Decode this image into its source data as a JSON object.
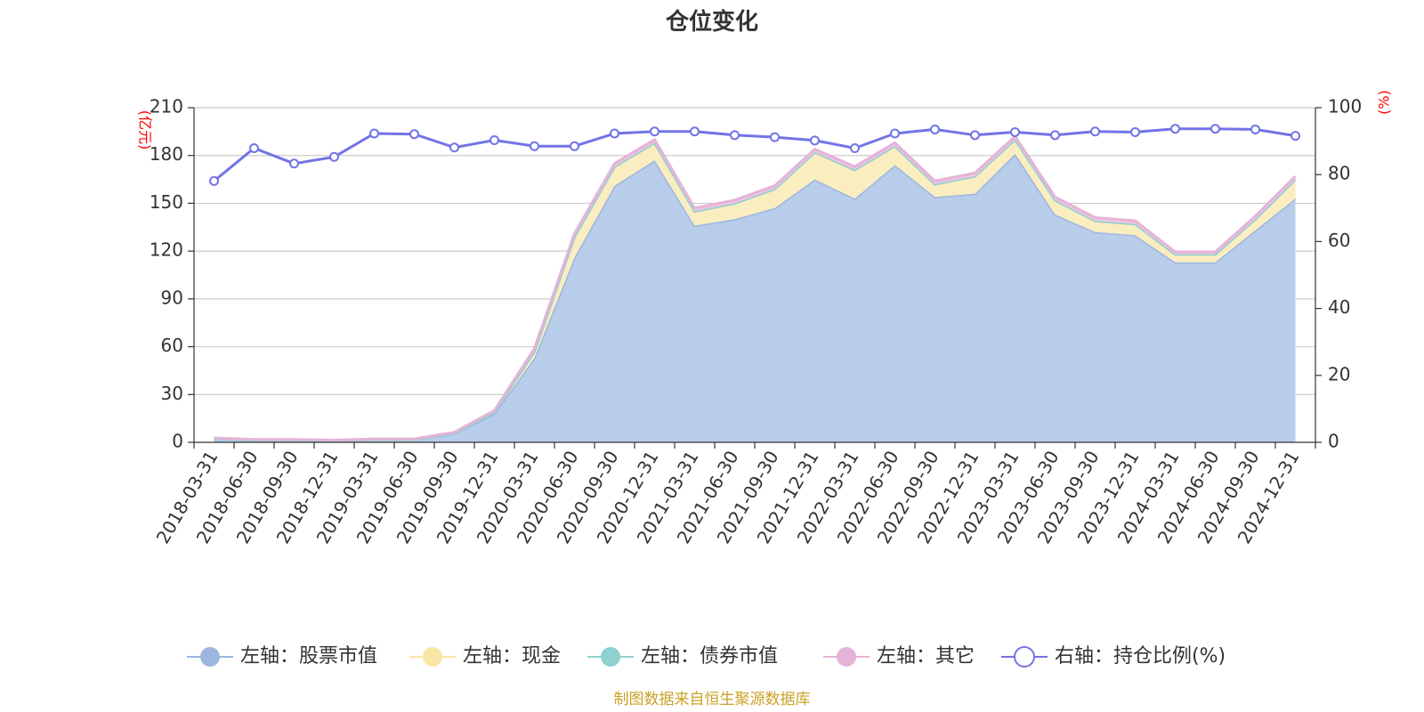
{
  "chart_data": {
    "type": "area",
    "title": "仓位变化",
    "source": "制图数据来自恒生聚源数据库",
    "left_axis": {
      "unit": "(亿元)",
      "ylim": [
        0,
        210
      ],
      "ticks": [
        0,
        30,
        60,
        90,
        120,
        150,
        180,
        210
      ]
    },
    "right_axis": {
      "unit": "(%)",
      "ylim": [
        0,
        100
      ],
      "ticks": [
        0,
        20,
        40,
        60,
        80,
        100
      ]
    },
    "categories": [
      "2018-03-31",
      "2018-06-30",
      "2018-09-30",
      "2018-12-31",
      "2019-03-31",
      "2019-06-30",
      "2019-09-30",
      "2019-12-31",
      "2020-03-31",
      "2020-06-30",
      "2020-09-30",
      "2020-12-31",
      "2021-03-31",
      "2021-06-30",
      "2021-09-30",
      "2021-12-31",
      "2022-03-31",
      "2022-06-30",
      "2022-09-30",
      "2022-12-31",
      "2023-03-31",
      "2023-06-30",
      "2023-09-30",
      "2023-12-31",
      "2024-03-31",
      "2024-06-30",
      "2024-09-30",
      "2024-12-31"
    ],
    "grid": true,
    "legend_position": "bottom-center",
    "series": [
      {
        "name": "左轴：股票市值",
        "axis": "left",
        "kind": "stacked-area",
        "color": "#9db6e0",
        "fill": "#b7cdea",
        "values": [
          2.3,
          1.3,
          1.3,
          0.9,
          1.7,
          1.7,
          5.5,
          18,
          53,
          116,
          161,
          177,
          136,
          140,
          147,
          165,
          153,
          174,
          154,
          156,
          181,
          143,
          132,
          130,
          113,
          113,
          133,
          153
        ]
      },
      {
        "name": "左轴：现金",
        "axis": "left",
        "kind": "stacked-area",
        "color": "#f7e6a6",
        "fill": "#faedbf",
        "values": [
          0.2,
          0.2,
          0.2,
          0.2,
          0.2,
          0.2,
          0.3,
          1,
          4,
          13,
          12,
          11,
          9,
          10,
          12,
          17,
          18,
          12,
          8,
          11,
          9,
          9,
          7,
          7,
          5,
          5,
          7,
          12
        ]
      },
      {
        "name": "左轴：债券市值",
        "axis": "left",
        "kind": "stacked-area",
        "color": "#8fd0d0",
        "fill": "#a8dcdc",
        "values": [
          0,
          0,
          0,
          0,
          0,
          0,
          0,
          0,
          0,
          0,
          0,
          0,
          0,
          0,
          0,
          0,
          0,
          0,
          0,
          0,
          0,
          0,
          0,
          0,
          0,
          0,
          0,
          0
        ]
      },
      {
        "name": "左轴：其它",
        "axis": "left",
        "kind": "stacked-area",
        "color": "#e5b3d8",
        "fill": "#eec6e2",
        "values": [
          0.3,
          0.3,
          0.3,
          0.3,
          0.3,
          0.3,
          0.5,
          1,
          2,
          2,
          2,
          2,
          2,
          2,
          2,
          2,
          2,
          2,
          2,
          2,
          2,
          2,
          2,
          2,
          1.5,
          1.5,
          2,
          2
        ]
      },
      {
        "name": "右轴：持仓比例(%)",
        "axis": "right",
        "kind": "line",
        "color": "#7274e6",
        "values": [
          78.1,
          87.9,
          83.3,
          85.3,
          92.3,
          92.1,
          88.1,
          90.3,
          88.5,
          88.5,
          92.3,
          92.9,
          92.9,
          91.8,
          91.2,
          90.2,
          87.9,
          92.3,
          93.5,
          91.8,
          92.7,
          91.8,
          92.9,
          92.7,
          93.7,
          93.7,
          93.5,
          91.6
        ]
      }
    ]
  }
}
